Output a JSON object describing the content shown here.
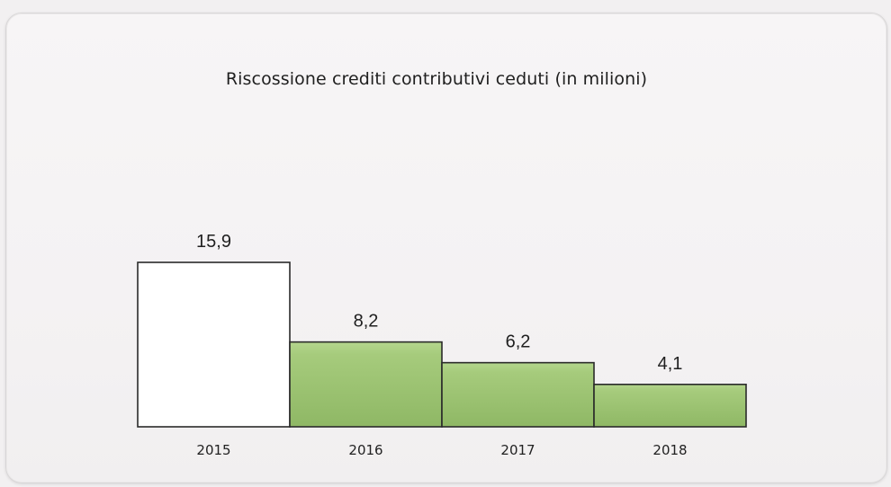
{
  "chart_data": {
    "type": "bar",
    "title": "Riscossione crediti contributivi ceduti (in milioni)",
    "categories": [
      "2015",
      "2016",
      "2017",
      "2018"
    ],
    "values": [
      15.9,
      8.2,
      6.2,
      4.1
    ],
    "value_labels": [
      "15,9",
      "8,2",
      "6,2",
      "4,1"
    ],
    "xlabel": "",
    "ylabel": "",
    "ylim": [
      0,
      15.9
    ],
    "grid": false,
    "legend": "none",
    "bar_colors": [
      "#ffffff",
      "#9dc272",
      "#9dc272",
      "#9dc272"
    ],
    "bar_border_color": "#2a2a2a"
  }
}
